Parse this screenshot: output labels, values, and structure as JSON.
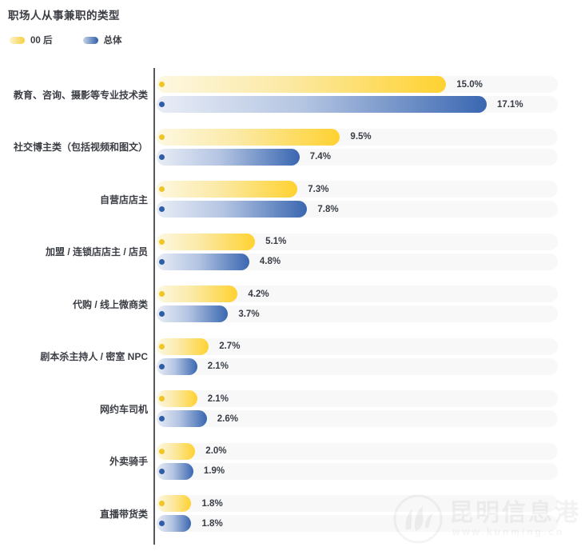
{
  "title": "职场人从事兼职的类型",
  "legend": [
    {
      "label": "00 后",
      "color": "#ffd231"
    },
    {
      "label": "总体",
      "color": "#3a67b1"
    }
  ],
  "chart_data": {
    "type": "bar",
    "orientation": "horizontal",
    "title": "职场人从事兼职的类型",
    "categories": [
      "教育、咨询、摄影等专业技术类",
      "社交博主类（包括视频和图文）",
      "自营店店主",
      "加盟 / 连锁店店主 / 店员",
      "代购 / 线上微商类",
      "剧本杀主持人 / 密室 NPC",
      "网约车司机",
      "外卖骑手",
      "直播带货类"
    ],
    "series": [
      {
        "name": "00 后",
        "values": [
          15.0,
          9.5,
          7.3,
          5.1,
          4.2,
          2.7,
          2.1,
          2.0,
          1.8
        ]
      },
      {
        "name": "总体",
        "values": [
          17.1,
          7.4,
          7.8,
          4.8,
          3.7,
          2.1,
          2.6,
          1.9,
          1.8
        ]
      }
    ],
    "value_label_format": "{value}%",
    "xlim": [
      0,
      20.8
    ],
    "grid": false,
    "legend_position": "top-left"
  },
  "colors": {
    "bar_yellow": "#ffd231",
    "bar_blue": "#3a67b1",
    "dot_yellow": "#f0c527",
    "dot_blue": "#2e5ea8",
    "track": "#f8f8f8",
    "axis": "#58585a",
    "text_dark": "#3b3e44"
  },
  "watermark": {
    "text": "昆明信息港",
    "subtext": "www.kunming.cn"
  }
}
